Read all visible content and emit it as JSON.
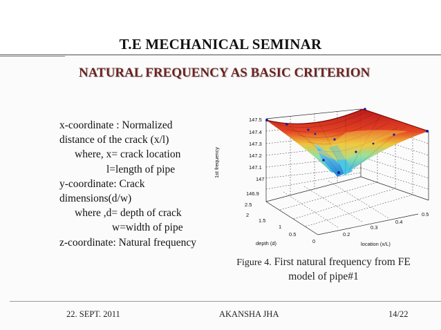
{
  "slide": {
    "title": "T.E MECHANICAL SEMINAR",
    "heading": "NATURAL FREQUENCY AS BASIC CRITERION"
  },
  "body_lines": [
    "x-coordinate : Normalized",
    "distance of the crack (x/l)",
    "where, x= crack location",
    "l=length of pipe",
    "y-coordinate: Crack",
    "dimensions(d/w)",
    "where ,d= depth of crack",
    "w=width of pipe",
    "z-coordinate: Natural frequency"
  ],
  "figure": {
    "caption_label": "Figure 4.",
    "caption_text": " First natural frequency from FE",
    "caption_line2": "model of pipe#1",
    "z_axis_label": "1st frequency",
    "x_axis_label": "depth (d)",
    "y_axis_label": "location (x/L)",
    "z_ticks": [
      "147.5",
      "147.4",
      "147.3",
      "147.2",
      "147.1",
      "147",
      "146.9"
    ],
    "depth_ticks": [
      "2.5",
      "2",
      "1.5",
      "1",
      "0.5",
      "0"
    ],
    "location_ticks": [
      "0.5",
      "0.4",
      "0.3",
      "0.2"
    ],
    "surface_colors": {
      "high": "#c81414",
      "mid": "#e8c020",
      "low": "#39c6e6",
      "marker": "#1a1aa0"
    }
  },
  "footer": {
    "date": "22. SEPT. 2011",
    "author": "AKANSHA JHA",
    "page": "14/22"
  }
}
